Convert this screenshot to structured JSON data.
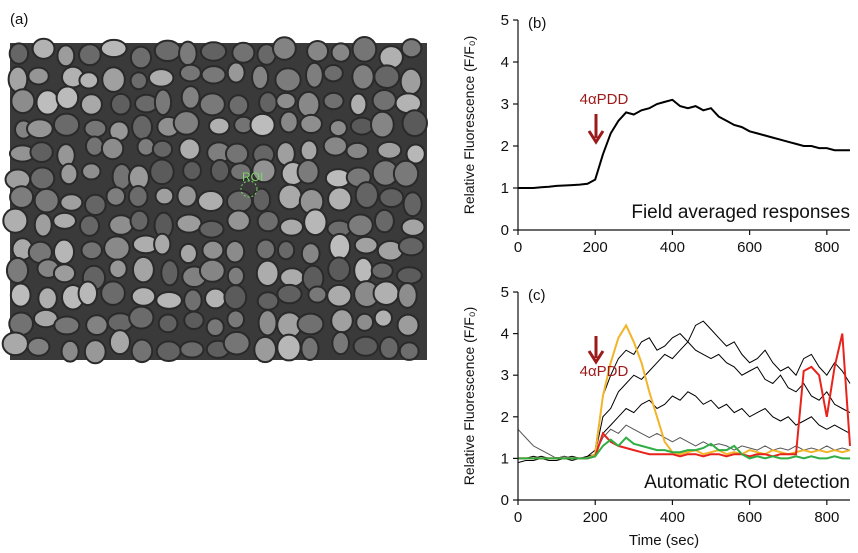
{
  "panel_a": {
    "label": "(a)",
    "roi_label": "ROI"
  },
  "chart_data": [
    {
      "type": "line",
      "panel": "(b)",
      "ylabel": "Relative Fluorescence (F/F₀)",
      "annotation": "4αPDD",
      "caption": "Field averaged responses",
      "x": [
        0,
        20,
        40,
        60,
        80,
        100,
        120,
        140,
        160,
        180,
        200,
        220,
        240,
        260,
        280,
        300,
        320,
        340,
        360,
        380,
        400,
        420,
        440,
        460,
        480,
        500,
        520,
        540,
        560,
        580,
        600,
        620,
        640,
        660,
        680,
        700,
        720,
        740,
        760,
        780,
        800,
        820,
        840,
        860
      ],
      "xlim": [
        0,
        860
      ],
      "xticks": [
        0,
        200,
        400,
        600,
        800
      ],
      "ylim": [
        0,
        5
      ],
      "yticks": [
        0,
        1,
        2,
        3,
        4,
        5
      ],
      "series": [
        {
          "color": "#000000",
          "values": [
            1.0,
            1.0,
            1.0,
            1.02,
            1.03,
            1.05,
            1.06,
            1.07,
            1.08,
            1.1,
            1.2,
            1.8,
            2.3,
            2.6,
            2.8,
            2.75,
            2.85,
            2.9,
            3.0,
            3.05,
            3.1,
            2.95,
            2.9,
            2.95,
            2.85,
            2.9,
            2.7,
            2.6,
            2.5,
            2.45,
            2.35,
            2.3,
            2.25,
            2.2,
            2.15,
            2.1,
            2.05,
            2.0,
            2.0,
            1.95,
            1.95,
            1.9,
            1.9,
            1.9
          ]
        }
      ]
    },
    {
      "type": "line",
      "panel": "(c)",
      "ylabel": "Relative Fluorescence (F/F₀)",
      "xlabel": "Time (sec)",
      "annotation": "4αPDD",
      "caption": "Automatic ROI detection",
      "x": [
        0,
        20,
        40,
        60,
        80,
        100,
        120,
        140,
        160,
        180,
        200,
        220,
        240,
        260,
        280,
        300,
        320,
        340,
        360,
        380,
        400,
        420,
        440,
        460,
        480,
        500,
        520,
        540,
        560,
        580,
        600,
        620,
        640,
        660,
        680,
        700,
        720,
        740,
        760,
        780,
        800,
        820,
        840,
        860
      ],
      "xlim": [
        0,
        860
      ],
      "xticks": [
        0,
        200,
        400,
        600,
        800
      ],
      "ylim": [
        0,
        5
      ],
      "yticks": [
        0,
        1,
        2,
        3,
        4,
        5
      ],
      "series": [
        {
          "color": "#000000",
          "values": [
            1.0,
            1.0,
            1.05,
            1.0,
            1.0,
            1.02,
            1.0,
            1.05,
            1.0,
            1.05,
            1.2,
            2.5,
            3.0,
            3.4,
            3.6,
            3.5,
            3.8,
            3.9,
            3.6,
            3.7,
            3.9,
            4.0,
            3.8,
            3.6,
            3.5,
            3.4,
            3.5,
            3.3,
            3.2,
            3.0,
            3.1,
            3.2,
            2.9,
            2.8,
            3.0,
            2.7,
            2.6,
            2.8,
            2.5,
            2.4,
            2.6,
            2.3,
            2.2,
            2.1
          ]
        },
        {
          "color": "#000000",
          "values": [
            0.9,
            0.95,
            0.95,
            1.0,
            0.95,
            0.95,
            1.0,
            0.95,
            1.0,
            1.0,
            1.1,
            2.0,
            2.2,
            2.6,
            2.8,
            3.0,
            2.9,
            3.1,
            3.3,
            3.5,
            3.4,
            3.6,
            3.8,
            4.2,
            4.3,
            4.1,
            3.9,
            3.7,
            3.8,
            3.5,
            3.3,
            3.4,
            3.6,
            3.3,
            3.1,
            3.2,
            3.0,
            3.4,
            3.5,
            3.2,
            3.0,
            3.3,
            3.1,
            2.8
          ]
        },
        {
          "color": "#000000",
          "values": [
            1.0,
            1.0,
            1.0,
            1.05,
            1.0,
            1.0,
            1.05,
            1.0,
            1.0,
            1.05,
            1.1,
            1.6,
            1.8,
            2.0,
            2.2,
            2.1,
            2.3,
            2.4,
            2.2,
            2.3,
            2.5,
            2.4,
            2.6,
            2.5,
            2.3,
            2.4,
            2.2,
            2.3,
            2.1,
            2.2,
            2.0,
            2.1,
            2.2,
            2.0,
            1.9,
            2.0,
            1.8,
            1.9,
            2.0,
            1.8,
            1.7,
            1.8,
            1.7,
            1.6
          ]
        },
        {
          "color": "#555555",
          "values": [
            1.7,
            1.5,
            1.3,
            1.2,
            1.1,
            1.0,
            1.05,
            1.0,
            1.0,
            1.0,
            1.1,
            1.5,
            1.7,
            1.6,
            1.8,
            1.7,
            1.6,
            1.5,
            1.6,
            1.5,
            1.4,
            1.5,
            1.4,
            1.3,
            1.4,
            1.3,
            1.35,
            1.3,
            1.2,
            1.3,
            1.25,
            1.2,
            1.3,
            1.2,
            1.25,
            1.2,
            1.3,
            1.2,
            1.25,
            1.2,
            1.3,
            1.2,
            1.25,
            1.2
          ]
        },
        {
          "color": "#f2b52a",
          "values": [
            1.0,
            1.0,
            1.0,
            1.0,
            1.0,
            1.0,
            1.0,
            1.0,
            1.0,
            1.0,
            1.1,
            2.5,
            3.3,
            3.9,
            4.2,
            3.8,
            3.3,
            2.6,
            2.0,
            1.4,
            1.15,
            1.1,
            1.15,
            1.2,
            1.1,
            1.15,
            1.2,
            1.1,
            1.15,
            1.1,
            1.2,
            1.15,
            1.1,
            1.2,
            1.15,
            1.1,
            1.15,
            1.2,
            1.15,
            1.2,
            1.15,
            1.2,
            1.15,
            1.2
          ]
        },
        {
          "color": "#e8231c",
          "values": [
            1.0,
            1.0,
            1.0,
            1.0,
            1.0,
            1.0,
            1.0,
            1.0,
            1.0,
            1.0,
            1.05,
            1.6,
            1.4,
            1.3,
            1.25,
            1.2,
            1.15,
            1.1,
            1.1,
            1.1,
            1.1,
            1.05,
            1.1,
            1.1,
            1.05,
            1.1,
            1.1,
            1.05,
            1.1,
            1.1,
            1.05,
            1.1,
            1.1,
            1.05,
            1.1,
            1.1,
            1.1,
            3.1,
            3.2,
            3.0,
            2.0,
            3.2,
            4.0,
            1.3
          ]
        },
        {
          "color": "#2fae44",
          "values": [
            1.0,
            1.0,
            1.0,
            1.0,
            1.0,
            1.0,
            1.0,
            1.0,
            1.0,
            1.0,
            1.05,
            1.3,
            1.45,
            1.3,
            1.5,
            1.35,
            1.3,
            1.25,
            1.2,
            1.2,
            1.15,
            1.15,
            1.2,
            1.2,
            1.25,
            1.35,
            1.2,
            1.2,
            1.3,
            1.1,
            1.0,
            1.05,
            1.0,
            1.05,
            1.0,
            1.0,
            1.05,
            1.0,
            1.05,
            1.0,
            1.0,
            1.05,
            1.0,
            1.0
          ]
        }
      ]
    }
  ]
}
